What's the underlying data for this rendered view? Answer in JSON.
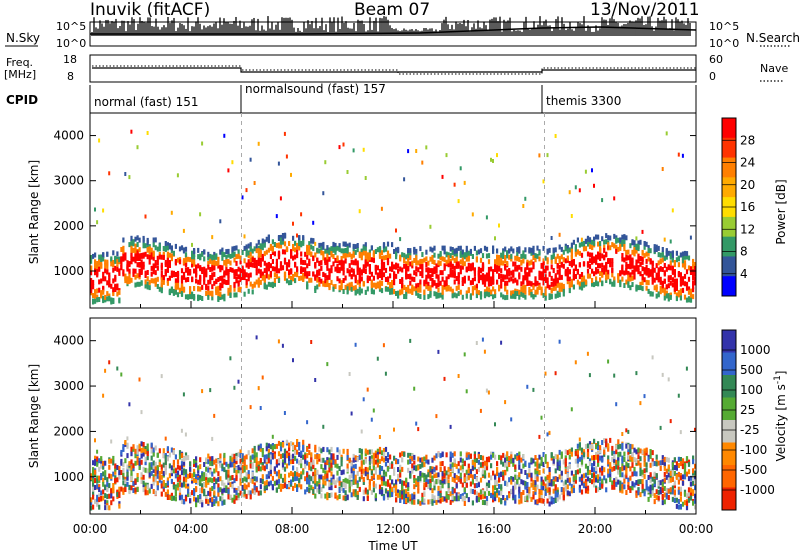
{
  "header": {
    "station": "Inuvik (fitACF)",
    "beam": "Beam 07",
    "date": "13/Nov/2011"
  },
  "panels": {
    "nsky": {
      "label": "N.Sky",
      "ytick_top": "10^5",
      "ytick_bottom": "10^0",
      "right_label": "N.Search",
      "right_top": "10^5",
      "right_bottom": "10^0"
    },
    "freq": {
      "label_line1": "Freq.",
      "label_line2": "[MHz]",
      "left_top": "18",
      "left_bottom": "8",
      "right_top": "60",
      "right_bottom": "0",
      "right_label": "Nave"
    },
    "cpid": {
      "label": "CPID",
      "modes": [
        {
          "name": "normal (fast) 151",
          "start_hour": 0
        },
        {
          "name": "normalsound (fast) 157",
          "start_hour": 6
        },
        {
          "name": "themis 3300",
          "start_hour": 18
        }
      ]
    }
  },
  "chart_data": [
    {
      "type": "heatmap",
      "panel": "power",
      "ylabel": "Slant Range [km]",
      "xlabel": "",
      "yticks": [
        1000,
        2000,
        3000,
        4000
      ],
      "ylim": [
        180,
        4500
      ],
      "xlim_hours": [
        0,
        24
      ],
      "colorbar_label": "Power [dB]",
      "colorbar_ticks": [
        "28",
        "24",
        "20",
        "16",
        "12",
        "8",
        "4"
      ],
      "colorbar_colors": [
        "#ff0000",
        "#ff3300",
        "#ff7f00",
        "#ffaa00",
        "#ffdd00",
        "#99cc33",
        "#339966",
        "#335599",
        "#0000ff"
      ]
    },
    {
      "type": "heatmap",
      "panel": "velocity",
      "ylabel": "Slant Range [km]",
      "xlabel": "Time UT",
      "yticks": [
        1000,
        2000,
        3000,
        4000
      ],
      "ylim": [
        180,
        4500
      ],
      "xlim_hours": [
        0,
        24
      ],
      "xtick_labels": [
        "00:00",
        "04:00",
        "08:00",
        "12:00",
        "16:00",
        "20:00",
        "00:00"
      ],
      "colorbar_label": "Velocity [m s",
      "colorbar_label_sup": "-1",
      "colorbar_label_end": "]",
      "colorbar_ticks": [
        "1000",
        "500",
        "100",
        "25",
        "-25",
        "-100",
        "-500",
        "-1000"
      ],
      "colorbar_colors": [
        "#3333aa",
        "#3366cc",
        "#338855",
        "#55aa33",
        "#c8c8c0",
        "#ff8800",
        "#ff6600",
        "#ee2200"
      ]
    }
  ]
}
